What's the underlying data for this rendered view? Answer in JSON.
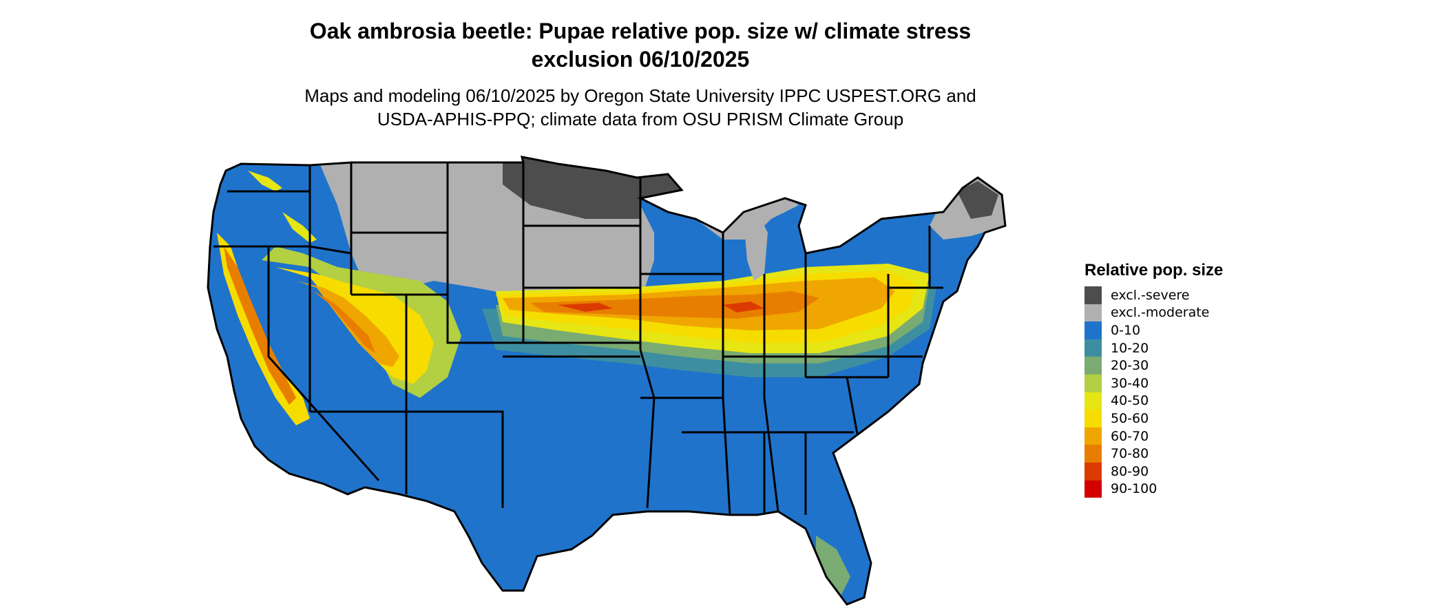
{
  "title_line1": "Oak ambrosia beetle: Pupae relative pop. size w/ climate stress",
  "title_line2": "exclusion 06/10/2025",
  "subtitle_line1": "Maps and modeling 06/10/2025 by Oregon State University IPPC USPEST.ORG and",
  "subtitle_line2": "USDA-APHIS-PPQ; climate data from OSU PRISM Climate Group",
  "legend": {
    "title": "Relative pop. size",
    "items": [
      {
        "label": "excl.-severe",
        "color": "#4d4d4d"
      },
      {
        "label": "excl.-moderate",
        "color": "#b0b0b0"
      },
      {
        "label": "0-10",
        "color": "#1f73cb"
      },
      {
        "label": "10-20",
        "color": "#3d8ea0"
      },
      {
        "label": "20-30",
        "color": "#7aab72"
      },
      {
        "label": "30-40",
        "color": "#b3cf42"
      },
      {
        "label": "40-50",
        "color": "#e6e614"
      },
      {
        "label": "50-60",
        "color": "#f7dc00"
      },
      {
        "label": "60-70",
        "color": "#efa600"
      },
      {
        "label": "70-80",
        "color": "#e87e00"
      },
      {
        "label": "80-90",
        "color": "#dc3a00"
      },
      {
        "label": "90-100",
        "color": "#d40000"
      }
    ]
  }
}
